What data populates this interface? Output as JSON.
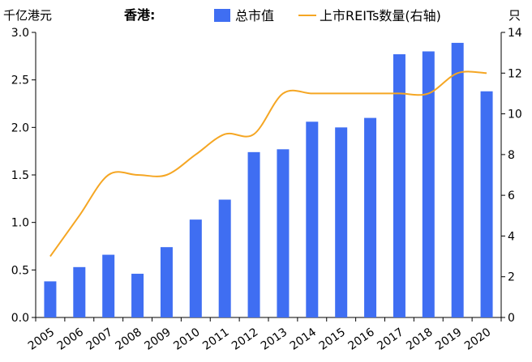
{
  "chart_data": {
    "type": "bar",
    "title": "香港:",
    "categories": [
      "2005",
      "2006",
      "2007",
      "2008",
      "2009",
      "2010",
      "2011",
      "2012",
      "2013",
      "2014",
      "2015",
      "2016",
      "2017",
      "2018",
      "2019",
      "2020"
    ],
    "series": [
      {
        "name": "总市值",
        "type": "bar",
        "axis": "left",
        "color": "#3f6ef2",
        "values": [
          0.38,
          0.53,
          0.66,
          0.46,
          0.74,
          1.03,
          1.24,
          1.74,
          1.77,
          2.06,
          2.0,
          2.1,
          2.77,
          2.8,
          2.89,
          2.38
        ]
      },
      {
        "name": "上市REITs数量(右轴)",
        "type": "line",
        "axis": "right",
        "color": "#f5a623",
        "values": [
          3,
          5,
          7,
          7,
          7,
          8,
          9,
          9,
          11,
          11,
          11,
          11,
          11,
          11,
          12,
          12
        ]
      }
    ],
    "y_left": {
      "label": "千亿港元",
      "lim": [
        0,
        3.0
      ],
      "ticks": [
        "0.0",
        "0.5",
        "1.0",
        "1.5",
        "2.0",
        "2.5",
        "3.0"
      ]
    },
    "y_right": {
      "label": "只",
      "lim": [
        0,
        14
      ],
      "ticks": [
        "0",
        "2",
        "4",
        "6",
        "8",
        "10",
        "12",
        "14"
      ]
    },
    "grid": false,
    "legend_position": "top"
  }
}
